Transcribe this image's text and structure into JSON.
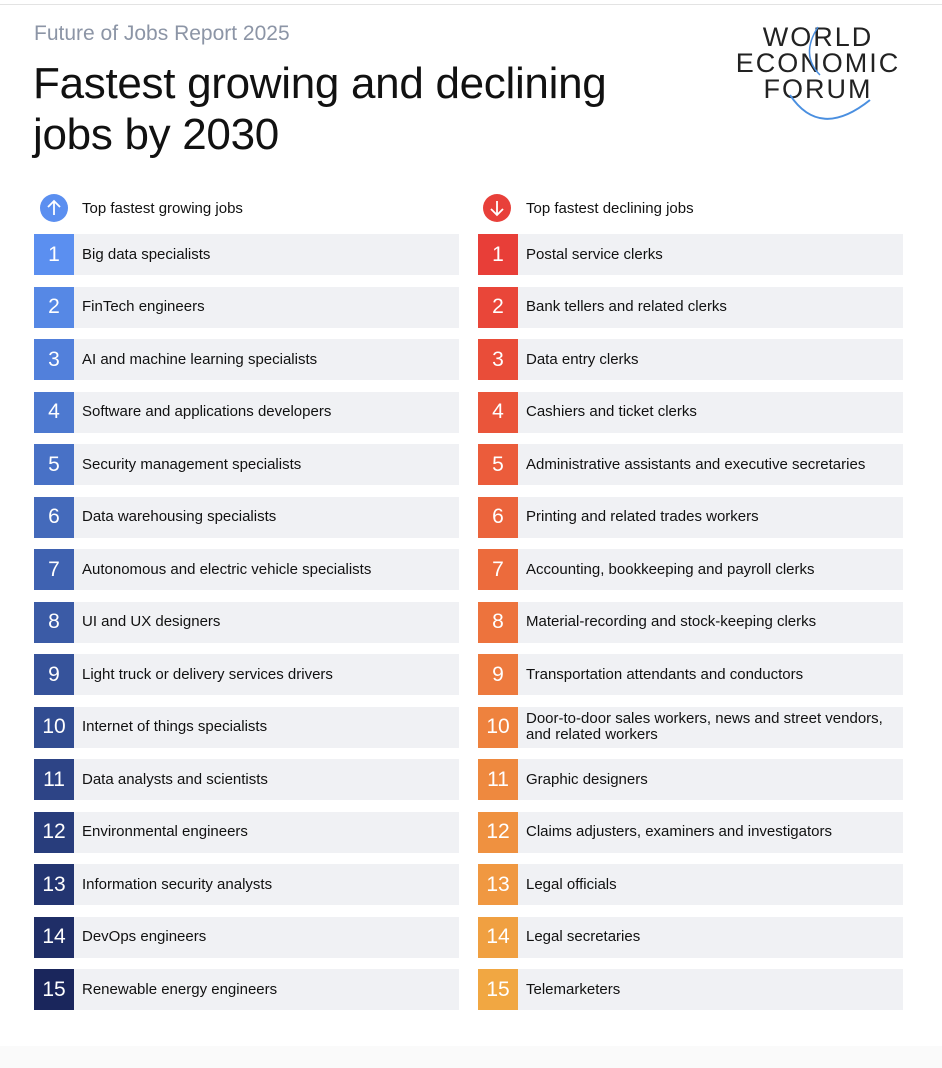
{
  "header": {
    "subtitle": "Future of Jobs Report 2025",
    "title": "Fastest growing and declining jobs by 2030"
  },
  "logo": {
    "lines": [
      "WORLD",
      "ECONOMIC",
      "FORUM"
    ]
  },
  "growing": {
    "heading": "Top fastest growing jobs",
    "items": [
      {
        "rank": 1,
        "label": "Big data specialists"
      },
      {
        "rank": 2,
        "label": "FinTech engineers"
      },
      {
        "rank": 3,
        "label": "AI and machine learning specialists"
      },
      {
        "rank": 4,
        "label": "Software and applications developers"
      },
      {
        "rank": 5,
        "label": "Security management specialists"
      },
      {
        "rank": 6,
        "label": "Data warehousing specialists"
      },
      {
        "rank": 7,
        "label": "Autonomous and electric vehicle specialists"
      },
      {
        "rank": 8,
        "label": "UI and UX designers"
      },
      {
        "rank": 9,
        "label": "Light truck or delivery services drivers"
      },
      {
        "rank": 10,
        "label": "Internet of things specialists"
      },
      {
        "rank": 11,
        "label": "Data analysts and scientists"
      },
      {
        "rank": 12,
        "label": "Environmental engineers"
      },
      {
        "rank": 13,
        "label": "Information security analysts"
      },
      {
        "rank": 14,
        "label": "DevOps engineers"
      },
      {
        "rank": 15,
        "label": "Renewable energy engineers"
      }
    ]
  },
  "declining": {
    "heading": "Top fastest declining jobs",
    "items": [
      {
        "rank": 1,
        "label": "Postal service clerks"
      },
      {
        "rank": 2,
        "label": "Bank tellers and related clerks"
      },
      {
        "rank": 3,
        "label": "Data entry clerks"
      },
      {
        "rank": 4,
        "label": "Cashiers and ticket clerks"
      },
      {
        "rank": 5,
        "label": "Administrative assistants and executive secretaries"
      },
      {
        "rank": 6,
        "label": "Printing and related trades workers"
      },
      {
        "rank": 7,
        "label": "Accounting, bookkeeping and payroll clerks"
      },
      {
        "rank": 8,
        "label": "Material-recording and stock-keeping clerks"
      },
      {
        "rank": 9,
        "label": "Transportation attendants and conductors"
      },
      {
        "rank": 10,
        "label": "Door-to-door sales workers, news and street vendors, and related workers"
      },
      {
        "rank": 11,
        "label": "Graphic designers"
      },
      {
        "rank": 12,
        "label": "Claims adjusters, examiners and investigators"
      },
      {
        "rank": 13,
        "label": "Legal officials"
      },
      {
        "rank": 14,
        "label": "Legal secretaries"
      },
      {
        "rank": 15,
        "label": "Telemarketers"
      }
    ]
  }
}
